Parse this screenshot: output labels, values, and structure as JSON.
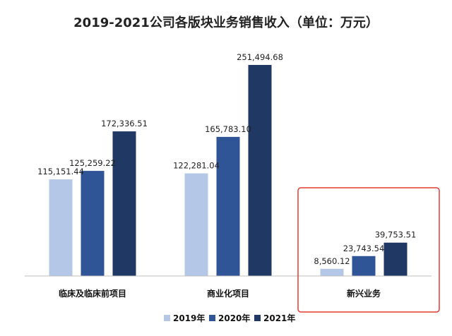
{
  "chart_data": {
    "type": "bar",
    "title": "2019-2021公司各版块业务销售收入（单位：万元）",
    "categories": [
      "临床及临床前项目",
      "商业化项目",
      "新兴业务"
    ],
    "series": [
      {
        "name": "2019年",
        "color": "#b4c7e7",
        "values": [
          115151.44,
          122281.04,
          8560.12
        ],
        "labels": [
          "115,151.44",
          "122,281.04",
          "8,560.12"
        ]
      },
      {
        "name": "2020年",
        "color": "#2f5597",
        "values": [
          125259.22,
          165783.1,
          23743.54
        ],
        "labels": [
          "125,259.22",
          "165,783.10",
          "23,743.54"
        ]
      },
      {
        "name": "2021年",
        "color": "#1f3864",
        "values": [
          172336.51,
          251494.68,
          39753.51
        ],
        "labels": [
          "172,336.51",
          "251,494.68",
          "39,753.51"
        ]
      }
    ],
    "ylim": [
      0,
      270000
    ],
    "xlabel": "",
    "ylabel": "",
    "grid": false,
    "legend": "bottom-center",
    "highlight": {
      "category": "新兴业务",
      "color": "#e03c31"
    }
  }
}
